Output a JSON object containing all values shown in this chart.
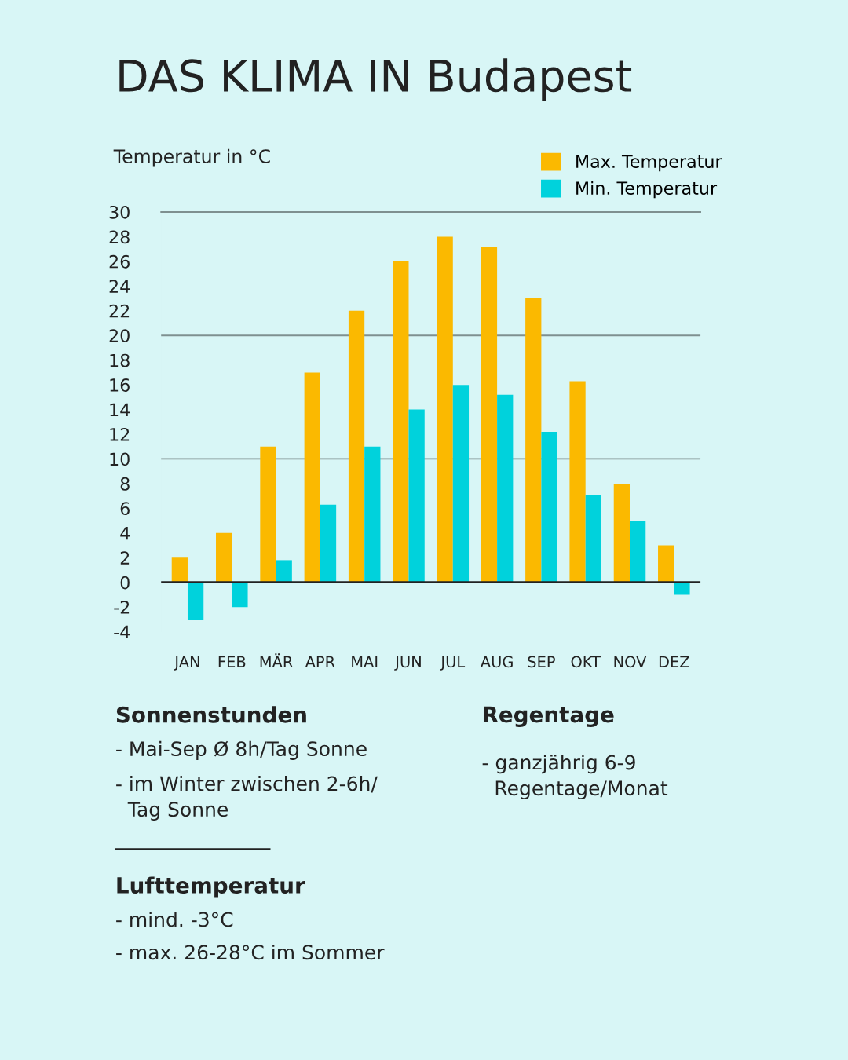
{
  "chart_data": {
    "type": "bar",
    "title": "DAS KLIMA IN Budapest",
    "ylabel": "Temperatur in °C",
    "categories": [
      "JAN",
      "FEB",
      "MÄR",
      "APR",
      "MAI",
      "JUN",
      "JUL",
      "AUG",
      "SEP",
      "OKT",
      "NOV",
      "DEZ"
    ],
    "series": [
      {
        "name": "Max. Temperatur",
        "color": "#fbb900",
        "values": [
          2,
          4,
          11,
          17,
          22,
          26,
          28,
          27.2,
          23,
          16.3,
          8,
          3
        ]
      },
      {
        "name": "Min. Temperatur",
        "color": "#00d2dc",
        "values": [
          -3,
          -2,
          1.8,
          6.3,
          11,
          14,
          16,
          15.2,
          12.2,
          7.1,
          5,
          -1
        ]
      }
    ],
    "ylim": [
      -4,
      30
    ],
    "yticks": [
      -4,
      -2,
      0,
      2,
      4,
      6,
      8,
      10,
      12,
      14,
      16,
      18,
      20,
      22,
      24,
      26,
      28,
      30
    ],
    "ref_lines": [
      {
        "axis": "y",
        "value": 0,
        "color": "#222222"
      },
      {
        "axis": "y",
        "value": 10,
        "color": "#7f9090"
      },
      {
        "axis": "y",
        "value": 20,
        "color": "#7f9090"
      }
    ],
    "legend": "top right",
    "grid": false,
    "annotations": [
      "Sonnenstunden",
      "- Mai-Sep Ø 8h/Tag Sonne",
      "- im Winter zwischen 2-6h/\n  Tag Sonne",
      "Regentage",
      "- ganzjährig 6-9\n  Regentage/Monat",
      "Lufttemperatur",
      "- mind. -3°C",
      "- max. 26-28°C im Sommer"
    ]
  }
}
